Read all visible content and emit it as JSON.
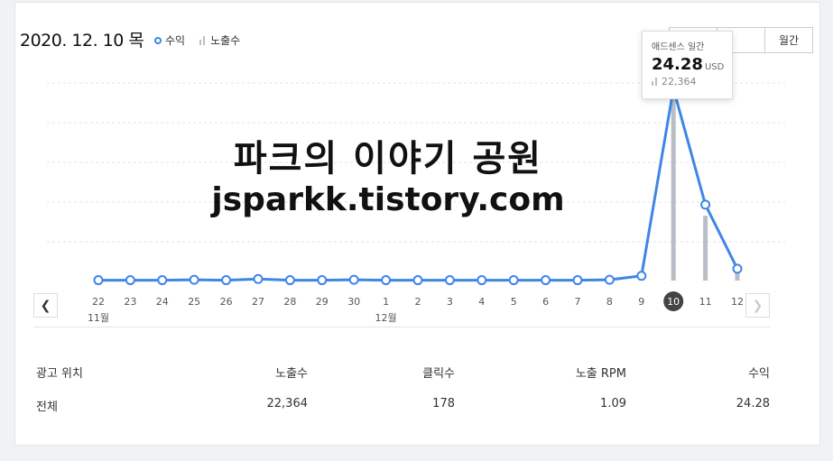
{
  "header": {
    "date": "2020. 12. 10 목",
    "legend_revenue": "수익",
    "legend_impressions": "노출수",
    "period_buttons": [
      "",
      "",
      "월간"
    ]
  },
  "tooltip": {
    "title": "애드센스 일간",
    "value": "24.28",
    "unit": "USD",
    "impressions": "22,364"
  },
  "watermark": {
    "line1": "파크의 이야기 공원",
    "line2": "jsparkk.tistory.com"
  },
  "chart_data": {
    "type": "line",
    "x": [
      "22",
      "23",
      "24",
      "25",
      "26",
      "27",
      "28",
      "29",
      "30",
      "1",
      "2",
      "3",
      "4",
      "5",
      "6",
      "7",
      "8",
      "9",
      "10",
      "11",
      "12"
    ],
    "month_labels": [
      {
        "index": 0,
        "label": "11월"
      },
      {
        "index": 9,
        "label": "12월"
      }
    ],
    "selected_index": 18,
    "series": [
      {
        "name": "수익",
        "type": "line",
        "color": "#3f86e6",
        "values": [
          0.05,
          0.05,
          0.05,
          0.1,
          0.05,
          0.2,
          0.05,
          0.05,
          0.1,
          0.05,
          0.05,
          0.05,
          0.05,
          0.05,
          0.05,
          0.05,
          0.1,
          0.6,
          24.28,
          9.6,
          1.5
        ]
      },
      {
        "name": "노출수",
        "type": "bar",
        "color": "#b9bec6",
        "values": [
          0,
          200,
          100,
          150,
          100,
          150,
          80,
          100,
          250,
          300,
          100,
          120,
          100,
          80,
          80,
          250,
          200,
          500,
          22364,
          8000,
          1200
        ]
      }
    ],
    "ylim": [
      0,
      25
    ],
    "grid": true
  },
  "table": {
    "headers": [
      "광고 위치",
      "노출수",
      "클릭수",
      "노출 RPM",
      "수익"
    ],
    "rows": [
      [
        "전체",
        "22,364",
        "178",
        "1.09",
        "24.28"
      ]
    ]
  }
}
